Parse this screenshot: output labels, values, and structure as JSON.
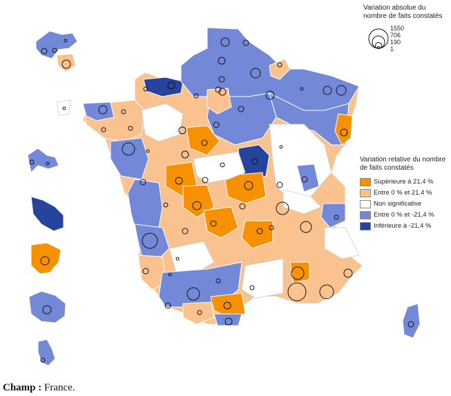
{
  "size_legend": {
    "title": "Variation absolue du nombre de faits constatés",
    "values": [
      "1550",
      "706",
      "190",
      "1"
    ]
  },
  "color_legend": {
    "title": "Variation relative du nombre de faits constatés",
    "items": [
      {
        "label": "Supérieure à 21,4 %",
        "color": "#f79100"
      },
      {
        "label": "Entre 0 % et 21,4 %",
        "color": "#f9c28e"
      },
      {
        "label": "Non significative",
        "color": "#ffffff"
      },
      {
        "label": "Entre 0 % et -21,4 %",
        "color": "#7389d8"
      },
      {
        "label": "Inférieure à -21,4 %",
        "color": "#26449b"
      }
    ]
  },
  "footer": {
    "label": "Champ :",
    "text": "France."
  }
}
